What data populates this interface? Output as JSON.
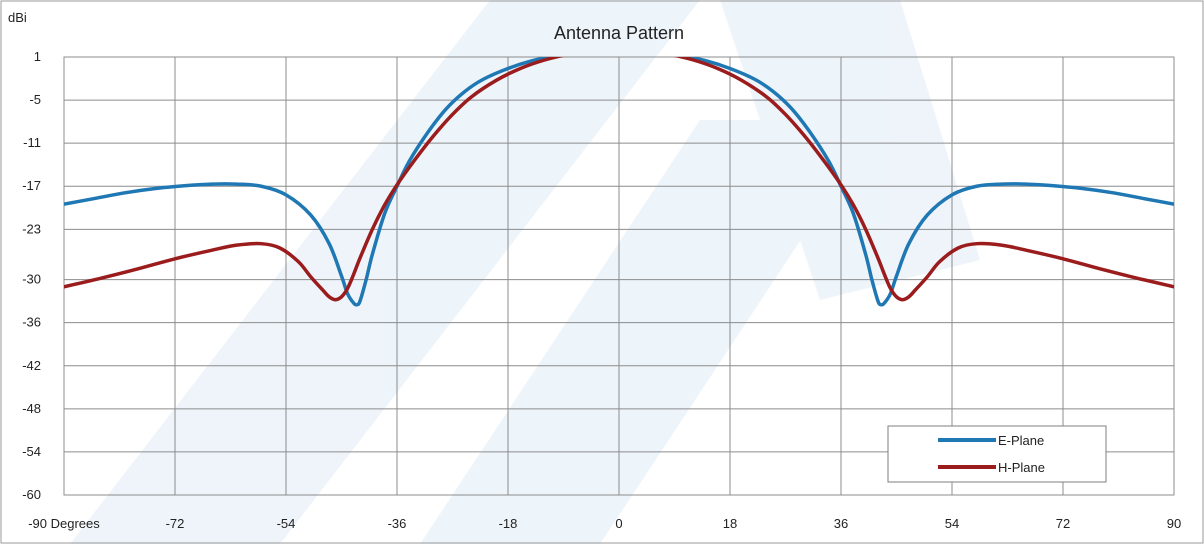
{
  "chart_data": {
    "type": "line",
    "title": "Antenna Pattern",
    "ylabel": "dBi",
    "xlabel": "Degrees",
    "xlim": [
      -90,
      90
    ],
    "ylim": [
      -60,
      1
    ],
    "x_ticks": [
      -90,
      -72,
      -54,
      -36,
      -18,
      0,
      18,
      36,
      54,
      72,
      90
    ],
    "x_tick_labels": [
      "-90 Degrees",
      "-72",
      "-54",
      "-36",
      "-18",
      "0",
      "18",
      "36",
      "54",
      "72",
      "90"
    ],
    "y_ticks": [
      1,
      -5,
      -11,
      -17,
      -23,
      -30,
      -36,
      -42,
      -48,
      -54,
      -60
    ],
    "y_tick_labels": [
      "1",
      "-5",
      "-11",
      "-17",
      "-23",
      "-30",
      "-36",
      "-42",
      "-48",
      "-54",
      "-60"
    ],
    "grid": true,
    "legend_position": "bottom-right",
    "series": [
      {
        "name": "E-Plane",
        "color": "#1f78b4",
        "x": [
          -90,
          -85,
          -80,
          -75,
          -70,
          -66,
          -62,
          -58,
          -54,
          -50,
          -47,
          -45,
          -44,
          -43,
          -42.5,
          -42,
          -41,
          -40,
          -38,
          -36,
          -34,
          -31,
          -28,
          -25,
          -22,
          -18,
          -14,
          -10,
          -6,
          -3,
          0,
          3,
          6,
          10,
          14,
          18,
          22,
          25,
          28,
          31,
          34,
          36,
          38,
          40,
          41,
          42,
          42.5,
          43,
          44,
          45,
          47,
          50,
          54,
          58,
          62,
          66,
          70,
          75,
          80,
          85,
          90
        ],
        "y": [
          -19.5,
          -18.7,
          -17.9,
          -17.3,
          -16.9,
          -16.7,
          -16.7,
          -17.0,
          -18.2,
          -21.0,
          -25.0,
          -29.5,
          -32.0,
          -33.3,
          -33.5,
          -33.0,
          -30.0,
          -26.5,
          -20.8,
          -17.0,
          -13.5,
          -9.5,
          -6.2,
          -3.8,
          -2.1,
          -0.6,
          0.5,
          1.2,
          1.7,
          1.9,
          2.0,
          1.9,
          1.7,
          1.2,
          0.5,
          -0.6,
          -2.1,
          -3.8,
          -6.2,
          -9.5,
          -13.5,
          -17.0,
          -20.8,
          -26.5,
          -30.0,
          -33.0,
          -33.5,
          -33.3,
          -32.0,
          -29.5,
          -25.0,
          -21.0,
          -18.2,
          -17.0,
          -16.7,
          -16.7,
          -16.9,
          -17.3,
          -17.9,
          -18.7,
          -19.5
        ]
      },
      {
        "name": "H-Plane",
        "color": "#9b1c1c",
        "x": [
          -90,
          -84,
          -78,
          -72,
          -66,
          -62,
          -58,
          -55,
          -52,
          -50,
          -48,
          -47,
          -46,
          -45,
          -44,
          -43,
          -42,
          -40,
          -38,
          -36,
          -33,
          -30,
          -27,
          -24,
          -20,
          -16,
          -12,
          -8,
          -4,
          0,
          4,
          8,
          12,
          16,
          20,
          24,
          27,
          30,
          33,
          36,
          38,
          40,
          42,
          43,
          44,
          45,
          46,
          47,
          48,
          50,
          52,
          55,
          58,
          62,
          66,
          72,
          78,
          84,
          90
        ],
        "y": [
          -31.0,
          -29.8,
          -28.5,
          -27.1,
          -25.9,
          -25.2,
          -25.0,
          -25.6,
          -27.5,
          -29.6,
          -31.5,
          -32.4,
          -32.8,
          -32.4,
          -31.2,
          -29.2,
          -27.0,
          -23.0,
          -19.6,
          -16.8,
          -13.2,
          -9.9,
          -7.0,
          -4.6,
          -2.3,
          -0.6,
          0.6,
          1.4,
          1.9,
          2.0,
          1.9,
          1.4,
          0.6,
          -0.6,
          -2.3,
          -4.6,
          -7.0,
          -9.9,
          -13.2,
          -16.8,
          -19.6,
          -23.0,
          -27.0,
          -29.2,
          -31.2,
          -32.4,
          -32.8,
          -32.4,
          -31.5,
          -29.6,
          -27.5,
          -25.6,
          -25.0,
          -25.2,
          -25.9,
          -27.1,
          -28.5,
          -29.8,
          -31.0
        ]
      }
    ]
  }
}
